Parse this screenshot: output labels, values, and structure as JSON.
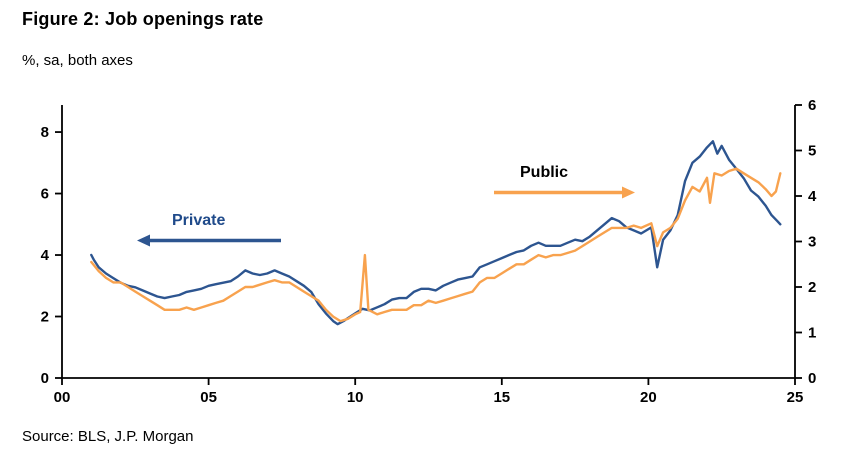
{
  "title": "Figure 2: Job openings rate",
  "subtitle": "%, sa, both axes",
  "source": "Source: BLS, J.P. Morgan",
  "annotations": {
    "private": {
      "label": "Private",
      "text_color": "#1f4a8a",
      "arrow_color": "#2d5590",
      "arrow_direction": "left"
    },
    "public": {
      "label": "Public",
      "text_color": "#000000",
      "arrow_color": "#f8a24e",
      "arrow_direction": "right"
    }
  },
  "chart_data": {
    "type": "line",
    "title": "Figure 2: Job openings rate",
    "subtitle": "%, sa, both axes",
    "grid": false,
    "x_axis": {
      "min": 2000,
      "max": 2025,
      "tick_years": [
        2000,
        2005,
        2010,
        2015,
        2020,
        2025
      ],
      "tick_labels": [
        "00",
        "05",
        "10",
        "15",
        "20",
        "25"
      ]
    },
    "left_axis": {
      "min": 0,
      "max": 8.88,
      "ticks": [
        0,
        2,
        4,
        6,
        8
      ]
    },
    "right_axis": {
      "min": 0,
      "max": 6,
      "ticks": [
        0,
        1,
        2,
        3,
        4,
        5,
        6
      ]
    },
    "series": [
      {
        "name": "Private",
        "axis": "left",
        "color": "#2d5590",
        "points": [
          [
            2001.0,
            4.0
          ],
          [
            2001.08,
            3.85
          ],
          [
            2001.25,
            3.6
          ],
          [
            2001.5,
            3.4
          ],
          [
            2001.75,
            3.25
          ],
          [
            2002.0,
            3.1
          ],
          [
            2002.25,
            3.0
          ],
          [
            2002.5,
            2.95
          ],
          [
            2002.75,
            2.85
          ],
          [
            2003.0,
            2.75
          ],
          [
            2003.25,
            2.65
          ],
          [
            2003.5,
            2.6
          ],
          [
            2003.75,
            2.65
          ],
          [
            2004.0,
            2.7
          ],
          [
            2004.25,
            2.8
          ],
          [
            2004.5,
            2.85
          ],
          [
            2004.75,
            2.9
          ],
          [
            2005.0,
            3.0
          ],
          [
            2005.25,
            3.05
          ],
          [
            2005.5,
            3.1
          ],
          [
            2005.75,
            3.15
          ],
          [
            2006.0,
            3.3
          ],
          [
            2006.25,
            3.5
          ],
          [
            2006.5,
            3.4
          ],
          [
            2006.75,
            3.35
          ],
          [
            2007.0,
            3.4
          ],
          [
            2007.25,
            3.5
          ],
          [
            2007.5,
            3.4
          ],
          [
            2007.75,
            3.3
          ],
          [
            2008.0,
            3.15
          ],
          [
            2008.25,
            3.0
          ],
          [
            2008.5,
            2.8
          ],
          [
            2008.75,
            2.4
          ],
          [
            2009.0,
            2.1
          ],
          [
            2009.25,
            1.85
          ],
          [
            2009.4,
            1.75
          ],
          [
            2009.6,
            1.85
          ],
          [
            2009.75,
            1.95
          ],
          [
            2010.0,
            2.1
          ],
          [
            2010.25,
            2.25
          ],
          [
            2010.5,
            2.2
          ],
          [
            2010.75,
            2.3
          ],
          [
            2011.0,
            2.4
          ],
          [
            2011.25,
            2.55
          ],
          [
            2011.5,
            2.6
          ],
          [
            2011.75,
            2.6
          ],
          [
            2012.0,
            2.8
          ],
          [
            2012.25,
            2.9
          ],
          [
            2012.5,
            2.9
          ],
          [
            2012.75,
            2.85
          ],
          [
            2013.0,
            3.0
          ],
          [
            2013.25,
            3.1
          ],
          [
            2013.5,
            3.2
          ],
          [
            2013.75,
            3.25
          ],
          [
            2014.0,
            3.3
          ],
          [
            2014.25,
            3.6
          ],
          [
            2014.5,
            3.7
          ],
          [
            2014.75,
            3.8
          ],
          [
            2015.0,
            3.9
          ],
          [
            2015.25,
            4.0
          ],
          [
            2015.5,
            4.1
          ],
          [
            2015.75,
            4.15
          ],
          [
            2016.0,
            4.3
          ],
          [
            2016.25,
            4.4
          ],
          [
            2016.5,
            4.3
          ],
          [
            2016.75,
            4.3
          ],
          [
            2017.0,
            4.3
          ],
          [
            2017.25,
            4.4
          ],
          [
            2017.5,
            4.5
          ],
          [
            2017.75,
            4.45
          ],
          [
            2018.0,
            4.6
          ],
          [
            2018.25,
            4.8
          ],
          [
            2018.5,
            5.0
          ],
          [
            2018.75,
            5.2
          ],
          [
            2019.0,
            5.1
          ],
          [
            2019.25,
            4.9
          ],
          [
            2019.5,
            4.8
          ],
          [
            2019.75,
            4.7
          ],
          [
            2020.1,
            4.9
          ],
          [
            2020.3,
            3.6
          ],
          [
            2020.5,
            4.5
          ],
          [
            2020.75,
            4.8
          ],
          [
            2021.0,
            5.3
          ],
          [
            2021.25,
            6.4
          ],
          [
            2021.5,
            7.0
          ],
          [
            2021.75,
            7.2
          ],
          [
            2022.0,
            7.5
          ],
          [
            2022.2,
            7.7
          ],
          [
            2022.35,
            7.3
          ],
          [
            2022.5,
            7.55
          ],
          [
            2022.75,
            7.1
          ],
          [
            2023.0,
            6.8
          ],
          [
            2023.25,
            6.5
          ],
          [
            2023.5,
            6.1
          ],
          [
            2023.75,
            5.9
          ],
          [
            2024.0,
            5.6
          ],
          [
            2024.2,
            5.3
          ],
          [
            2024.4,
            5.1
          ],
          [
            2024.5,
            5.0
          ]
        ]
      },
      {
        "name": "Public",
        "axis": "right",
        "color": "#f8a24e",
        "points": [
          [
            2001.0,
            2.55
          ],
          [
            2001.25,
            2.35
          ],
          [
            2001.5,
            2.2
          ],
          [
            2001.75,
            2.1
          ],
          [
            2002.0,
            2.1
          ],
          [
            2002.25,
            2.0
          ],
          [
            2002.5,
            1.9
          ],
          [
            2002.75,
            1.8
          ],
          [
            2003.0,
            1.7
          ],
          [
            2003.25,
            1.6
          ],
          [
            2003.5,
            1.5
          ],
          [
            2003.75,
            1.5
          ],
          [
            2004.0,
            1.5
          ],
          [
            2004.25,
            1.55
          ],
          [
            2004.5,
            1.5
          ],
          [
            2004.75,
            1.55
          ],
          [
            2005.0,
            1.6
          ],
          [
            2005.25,
            1.65
          ],
          [
            2005.5,
            1.7
          ],
          [
            2005.75,
            1.8
          ],
          [
            2006.0,
            1.9
          ],
          [
            2006.25,
            2.0
          ],
          [
            2006.5,
            2.0
          ],
          [
            2006.75,
            2.05
          ],
          [
            2007.0,
            2.1
          ],
          [
            2007.25,
            2.15
          ],
          [
            2007.5,
            2.1
          ],
          [
            2007.75,
            2.1
          ],
          [
            2008.0,
            2.0
          ],
          [
            2008.25,
            1.9
          ],
          [
            2008.5,
            1.8
          ],
          [
            2008.75,
            1.7
          ],
          [
            2009.0,
            1.5
          ],
          [
            2009.25,
            1.35
          ],
          [
            2009.5,
            1.25
          ],
          [
            2009.75,
            1.3
          ],
          [
            2010.0,
            1.4
          ],
          [
            2010.17,
            1.45
          ],
          [
            2010.33,
            2.7
          ],
          [
            2010.45,
            1.5
          ],
          [
            2010.75,
            1.4
          ],
          [
            2011.0,
            1.45
          ],
          [
            2011.25,
            1.5
          ],
          [
            2011.5,
            1.5
          ],
          [
            2011.75,
            1.5
          ],
          [
            2012.0,
            1.6
          ],
          [
            2012.25,
            1.6
          ],
          [
            2012.5,
            1.7
          ],
          [
            2012.75,
            1.65
          ],
          [
            2013.0,
            1.7
          ],
          [
            2013.25,
            1.75
          ],
          [
            2013.5,
            1.8
          ],
          [
            2013.75,
            1.85
          ],
          [
            2014.0,
            1.9
          ],
          [
            2014.25,
            2.1
          ],
          [
            2014.5,
            2.2
          ],
          [
            2014.75,
            2.2
          ],
          [
            2015.0,
            2.3
          ],
          [
            2015.25,
            2.4
          ],
          [
            2015.5,
            2.5
          ],
          [
            2015.75,
            2.5
          ],
          [
            2016.0,
            2.6
          ],
          [
            2016.25,
            2.7
          ],
          [
            2016.5,
            2.65
          ],
          [
            2016.75,
            2.7
          ],
          [
            2017.0,
            2.7
          ],
          [
            2017.25,
            2.75
          ],
          [
            2017.5,
            2.8
          ],
          [
            2017.75,
            2.9
          ],
          [
            2018.0,
            3.0
          ],
          [
            2018.25,
            3.1
          ],
          [
            2018.5,
            3.2
          ],
          [
            2018.75,
            3.3
          ],
          [
            2019.0,
            3.3
          ],
          [
            2019.25,
            3.3
          ],
          [
            2019.5,
            3.35
          ],
          [
            2019.75,
            3.3
          ],
          [
            2020.1,
            3.4
          ],
          [
            2020.3,
            2.9
          ],
          [
            2020.5,
            3.2
          ],
          [
            2020.75,
            3.3
          ],
          [
            2021.0,
            3.5
          ],
          [
            2021.25,
            3.9
          ],
          [
            2021.5,
            4.2
          ],
          [
            2021.75,
            4.1
          ],
          [
            2022.0,
            4.4
          ],
          [
            2022.1,
            3.85
          ],
          [
            2022.25,
            4.5
          ],
          [
            2022.5,
            4.45
          ],
          [
            2022.75,
            4.55
          ],
          [
            2023.0,
            4.6
          ],
          [
            2023.25,
            4.5
          ],
          [
            2023.5,
            4.4
          ],
          [
            2023.75,
            4.3
          ],
          [
            2024.0,
            4.15
          ],
          [
            2024.2,
            4.0
          ],
          [
            2024.35,
            4.1
          ],
          [
            2024.5,
            4.5
          ]
        ]
      }
    ]
  }
}
